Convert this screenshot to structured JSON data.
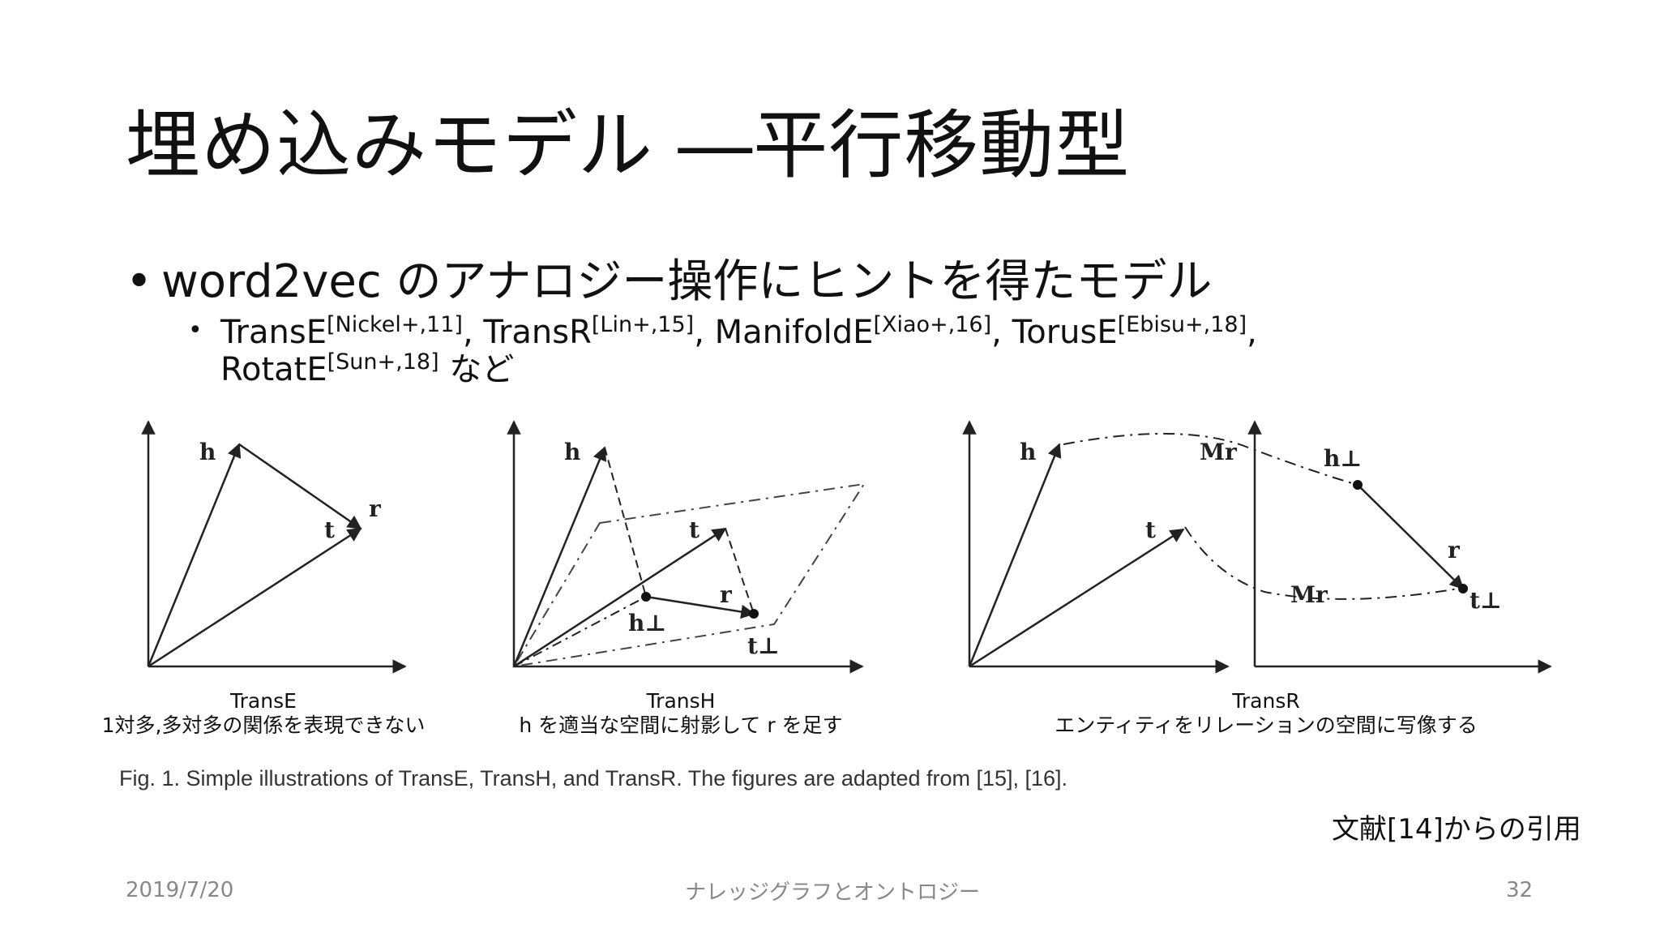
{
  "slide": {
    "title": "埋め込みモデル ―平行移動型",
    "bullet1": "word2vec のアナロジー操作にヒントを得たモデル",
    "bullet2": {
      "items": [
        {
          "name": "TransE",
          "ref": "[Nickel+,11]",
          "sep": ", "
        },
        {
          "name": "TransR",
          "ref": "[Lin+,15]",
          "sep": ", "
        },
        {
          "name": "ManifoldE",
          "ref": "[Xiao+,16]",
          "sep": ", "
        },
        {
          "name": "TorusE",
          "ref": "[Ebisu+,18]",
          "sep": ","
        },
        {
          "name": "RotatE",
          "ref": "[Sun+,18]",
          "sep": " など"
        }
      ]
    },
    "figure": {
      "labels": {
        "h": "h",
        "t": "t",
        "r": "r",
        "h_perp": "h⊥",
        "t_perp": "t⊥",
        "Mr": "Mr"
      },
      "captions": [
        {
          "title": "TransE",
          "desc": "1対多,多対多の関係を表現できない"
        },
        {
          "title": "TransH",
          "desc": "h を適当な空間に射影して r を足す"
        },
        {
          "title": "TransR",
          "desc": "エンティティをリレーションの空間に写像する"
        }
      ],
      "caption": "Fig. 1. Simple illustrations of TransE, TransH, and TransR. The figures are adapted from [15], [16]."
    },
    "citation": "文献[14]からの引用",
    "footer": {
      "date": "2019/7/20",
      "center": "ナレッジグラフとオントロジー",
      "page": "32"
    }
  }
}
